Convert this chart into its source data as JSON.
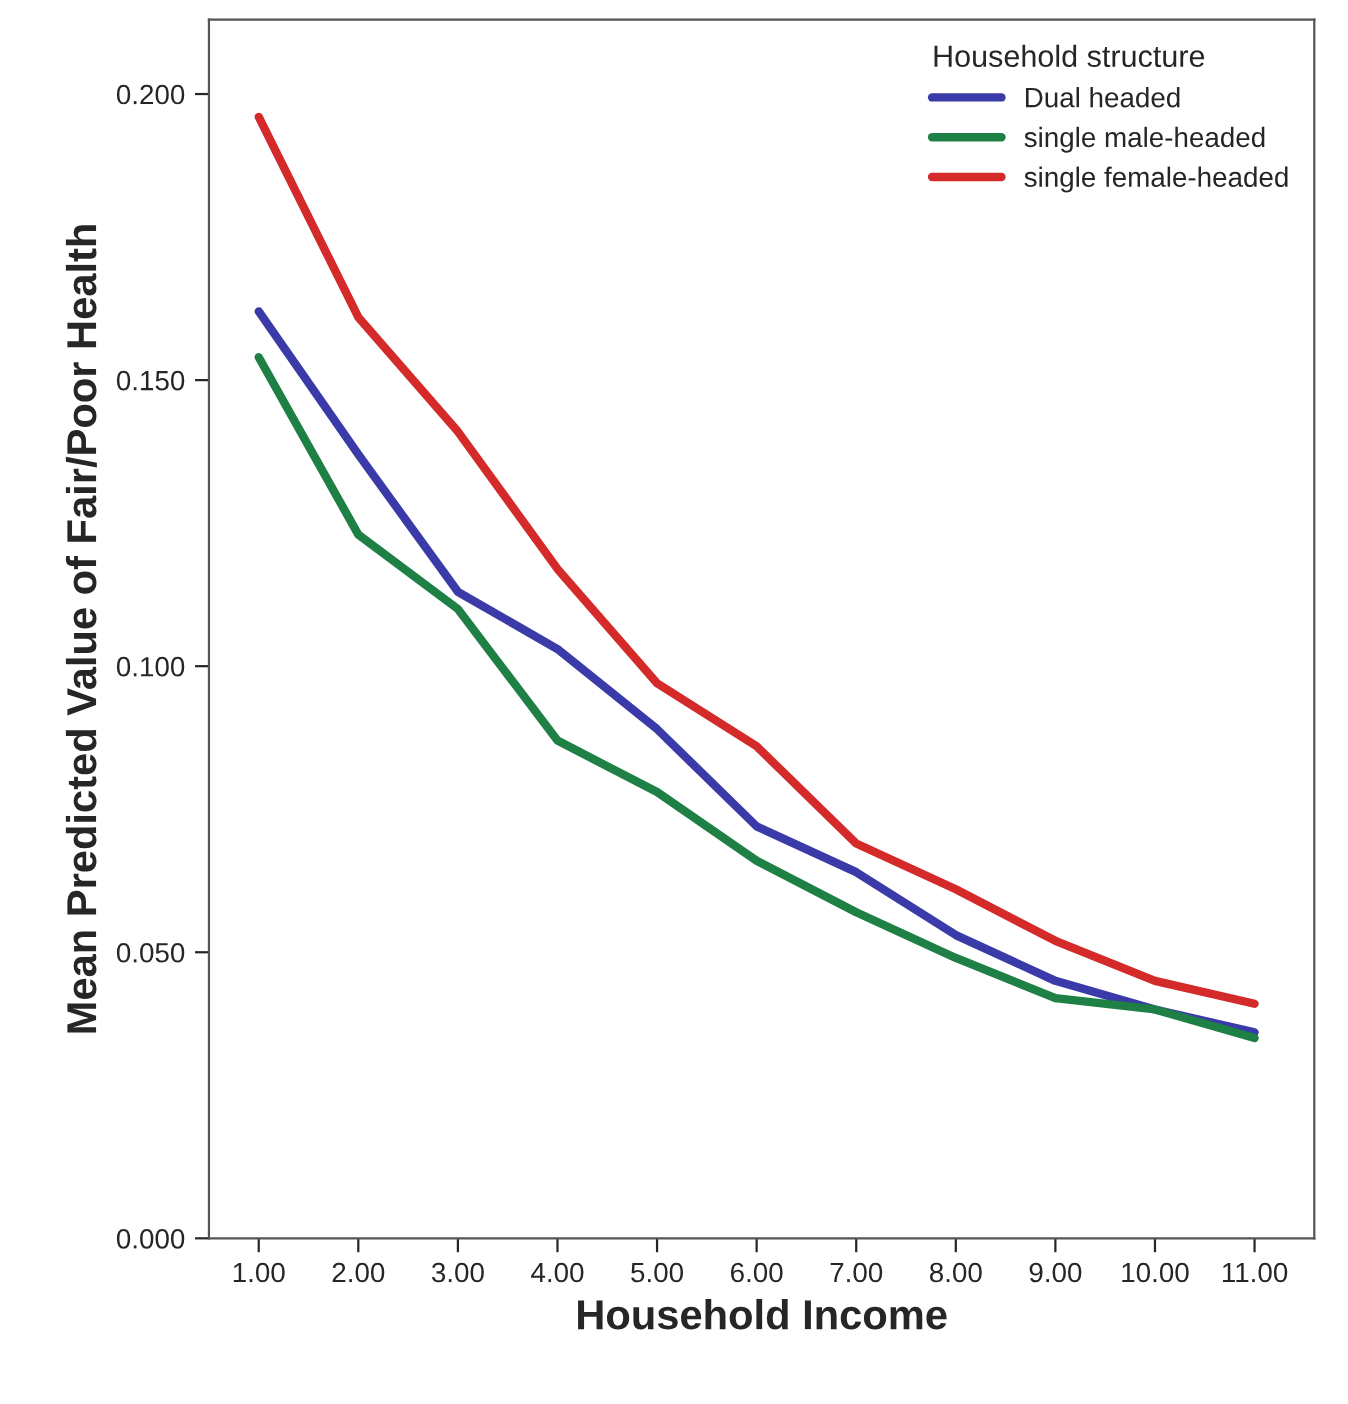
{
  "chart_data": {
    "type": "line",
    "xlabel": "Household Income",
    "ylabel": "Mean Predicted Value of Fair/Poor Health",
    "legend_title": "Household structure",
    "x": [
      1,
      2,
      3,
      4,
      5,
      6,
      7,
      8,
      9,
      10,
      11
    ],
    "series": [
      {
        "name": "Dual headed",
        "color": "#3a3aa8",
        "values": [
          0.162,
          0.137,
          0.113,
          0.103,
          0.089,
          0.072,
          0.064,
          0.053,
          0.045,
          0.04,
          0.036
        ]
      },
      {
        "name": "single male-headed",
        "color": "#1e8045",
        "values": [
          0.154,
          0.123,
          0.11,
          0.087,
          0.078,
          0.066,
          0.057,
          0.049,
          0.042,
          0.04,
          0.035
        ]
      },
      {
        "name": "single female-headed",
        "color": "#d42a2a",
        "values": [
          0.196,
          0.161,
          0.141,
          0.117,
          0.097,
          0.086,
          0.069,
          0.061,
          0.052,
          0.045,
          0.041
        ]
      }
    ],
    "xlim": [
      0.5,
      11.6
    ],
    "xticks": [
      {
        "value": 1,
        "label": "1.00"
      },
      {
        "value": 2,
        "label": "2.00"
      },
      {
        "value": 3,
        "label": "3.00"
      },
      {
        "value": 4,
        "label": "4.00"
      },
      {
        "value": 5,
        "label": "5.00"
      },
      {
        "value": 6,
        "label": "6.00"
      },
      {
        "value": 7,
        "label": "7.00"
      },
      {
        "value": 8,
        "label": "8.00"
      },
      {
        "value": 9,
        "label": "9.00"
      },
      {
        "value": 10,
        "label": "10.00"
      },
      {
        "value": 11,
        "label": "11.00"
      }
    ],
    "ylim": [
      0,
      0.213
    ],
    "yticks": [
      {
        "value": 0,
        "label": "0.000"
      },
      {
        "value": 0.05,
        "label": "0.050"
      },
      {
        "value": 0.1,
        "label": "0.100"
      },
      {
        "value": 0.15,
        "label": "0.150"
      },
      {
        "value": 0.2,
        "label": "0.200"
      }
    ],
    "grid": false,
    "legend": "top right",
    "marker": "none",
    "line_style": "solid"
  }
}
